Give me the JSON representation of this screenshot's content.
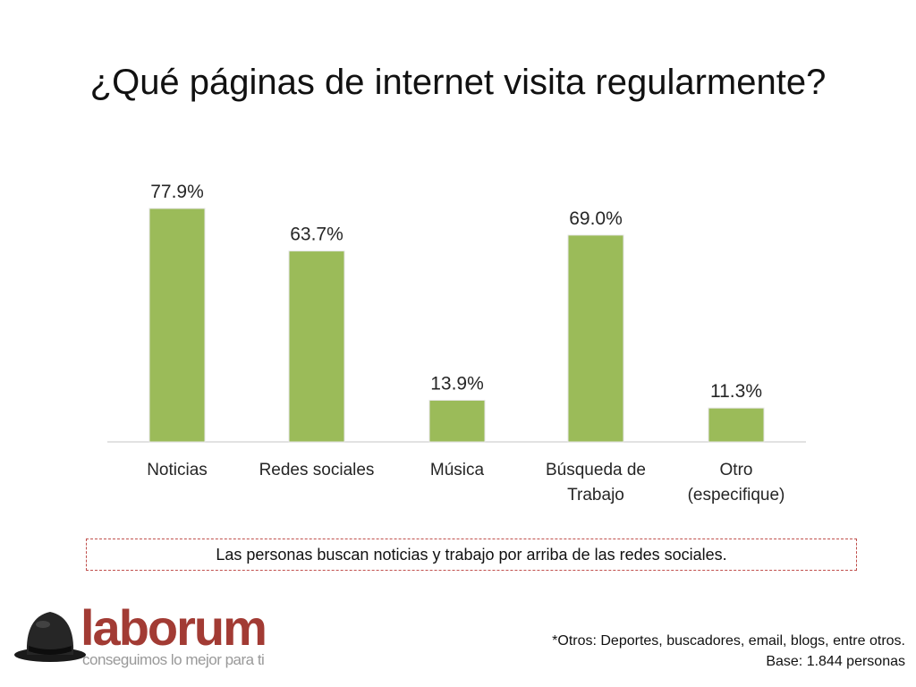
{
  "title": "¿Qué páginas de internet visita regularmente?",
  "chart_data": {
    "type": "bar",
    "categories": [
      [
        "Noticias"
      ],
      [
        "Redes sociales"
      ],
      [
        "Música"
      ],
      [
        "Búsqueda de",
        "Trabajo"
      ],
      [
        "Otro",
        "(especifique)"
      ]
    ],
    "values": [
      77.9,
      63.7,
      13.9,
      69.0,
      11.3
    ],
    "value_labels": [
      "77.9%",
      "63.7%",
      "13.9%",
      "69.0%",
      "11.3%"
    ],
    "bar_color": "#9bbb59",
    "ylim": [
      0,
      100
    ],
    "grid": false,
    "legend": "none"
  },
  "callout": "Las personas buscan noticias y trabajo por arriba de las redes sociales.",
  "footnote": {
    "line1": "*Otros: Deportes, buscadores, email, blogs, entre otros.",
    "line2": "Base: 1.844 personas"
  },
  "brand": {
    "name": "laborum",
    "slogan": "conseguimos lo mejor para ti",
    "color": "#a23b34"
  }
}
